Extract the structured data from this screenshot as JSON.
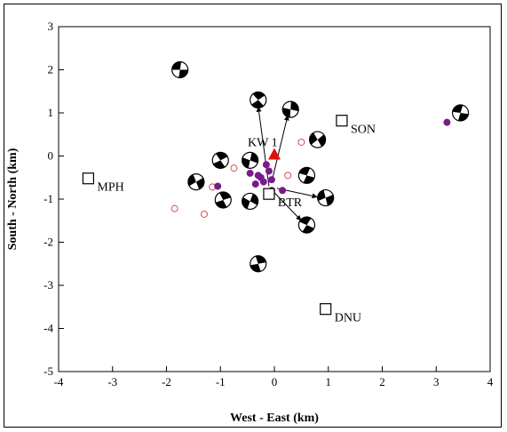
{
  "chart_data": {
    "type": "scatter",
    "title": "",
    "xlabel": "West - East (km)",
    "ylabel": "South - North (km)",
    "xlim": [
      -4,
      4
    ],
    "ylim": [
      -5,
      3
    ],
    "xticks": [
      -4,
      -3,
      -2,
      -1,
      0,
      1,
      2,
      3,
      4
    ],
    "yticks": [
      -5,
      -4,
      -3,
      -2,
      -1,
      0,
      1,
      2,
      3
    ],
    "grid": false,
    "legend": "none",
    "colors": {
      "event_filled": "#7b1a8c",
      "event_open": "#d05050",
      "volcano": "#e01010",
      "station": "#000000"
    },
    "stations": [
      {
        "name": "SON",
        "x": 1.25,
        "y": 0.82
      },
      {
        "name": "MPH",
        "x": -3.45,
        "y": -0.52
      },
      {
        "name": "BTR",
        "x": -0.1,
        "y": -0.88
      },
      {
        "name": "DNU",
        "x": 0.95,
        "y": -3.55
      }
    ],
    "volcano": {
      "name": "KW 1",
      "x": 0.0,
      "y": 0.02
    },
    "events_filled": [
      {
        "x": -0.45,
        "y": -0.4
      },
      {
        "x": -0.25,
        "y": -0.5
      },
      {
        "x": -0.1,
        "y": -0.35
      },
      {
        "x": -0.05,
        "y": -0.55
      },
      {
        "x": -0.2,
        "y": -0.6
      },
      {
        "x": -0.35,
        "y": -0.65
      },
      {
        "x": -0.3,
        "y": -0.45
      },
      {
        "x": -0.05,
        "y": -0.8
      },
      {
        "x": 0.15,
        "y": -0.8
      },
      {
        "x": -1.05,
        "y": -0.7
      },
      {
        "x": 3.2,
        "y": 0.78
      },
      {
        "x": -0.15,
        "y": -0.2
      }
    ],
    "events_open": [
      {
        "x": -0.75,
        "y": -0.28
      },
      {
        "x": 0.5,
        "y": 0.32
      },
      {
        "x": 0.25,
        "y": -0.45
      },
      {
        "x": -1.15,
        "y": -0.72
      },
      {
        "x": -1.85,
        "y": -1.22
      },
      {
        "x": -1.3,
        "y": -1.35
      }
    ],
    "mechanisms": [
      {
        "x": -1.75,
        "y": 2.0
      },
      {
        "x": -0.3,
        "y": 1.3
      },
      {
        "x": 0.3,
        "y": 1.08
      },
      {
        "x": 0.8,
        "y": 0.38
      },
      {
        "x": 3.45,
        "y": 1.0
      },
      {
        "x": -1.0,
        "y": -0.1
      },
      {
        "x": -0.45,
        "y": -0.1
      },
      {
        "x": -1.45,
        "y": -0.6
      },
      {
        "x": 0.6,
        "y": -0.45
      },
      {
        "x": -0.95,
        "y": -1.02
      },
      {
        "x": -0.45,
        "y": -1.05
      },
      {
        "x": 0.95,
        "y": -0.97
      },
      {
        "x": 0.6,
        "y": -1.6
      },
      {
        "x": -0.3,
        "y": -2.5
      }
    ],
    "arrows": [
      {
        "from": [
          -0.1,
          -0.7
        ],
        "to": [
          -0.3,
          1.15
        ]
      },
      {
        "from": [
          -0.05,
          -0.6
        ],
        "to": [
          0.25,
          0.95
        ]
      },
      {
        "from": [
          0.05,
          -0.75
        ],
        "to": [
          0.8,
          -0.95
        ]
      },
      {
        "from": [
          0.0,
          -0.85
        ],
        "to": [
          0.5,
          -1.5
        ]
      }
    ]
  }
}
